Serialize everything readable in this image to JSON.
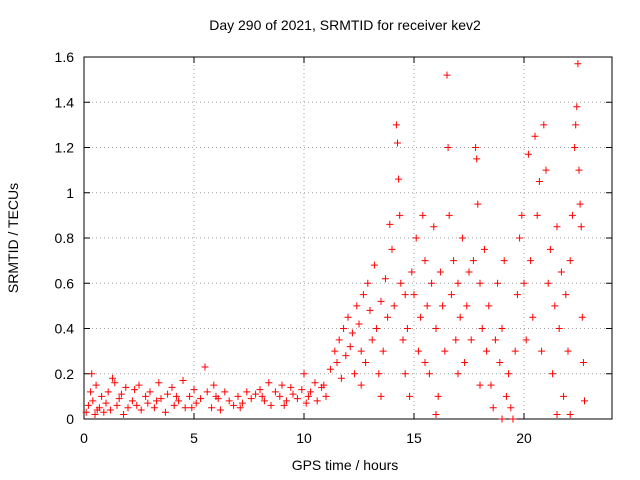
{
  "chart_data": {
    "type": "scatter",
    "title": "Day 290 of 2021, SRMTID for receiver kev2",
    "xlabel": "GPS time / hours",
    "ylabel": "SRMTID / TECUs",
    "xlim": [
      0,
      24
    ],
    "ylim": [
      0,
      1.6
    ],
    "xticks": [
      0,
      5,
      10,
      15,
      20
    ],
    "xtick_labels": [
      "0",
      "5",
      "10",
      "15",
      "20"
    ],
    "yticks": [
      0,
      0.2,
      0.4,
      0.6,
      0.8,
      1,
      1.2,
      1.4,
      1.6
    ],
    "ytick_labels": [
      "0",
      "0.2",
      "0.4",
      "0.6",
      "0.8",
      "1",
      "1.2",
      "1.4",
      "1.6"
    ],
    "grid": true,
    "marker": "+",
    "series": [
      {
        "name": "kev2",
        "color": "#ff0000",
        "points": [
          [
            0.1,
            0.03
          ],
          [
            0.2,
            0.06
          ],
          [
            0.3,
            0.12
          ],
          [
            0.35,
            0.2
          ],
          [
            0.4,
            0.08
          ],
          [
            0.5,
            0.02
          ],
          [
            0.55,
            0.15
          ],
          [
            0.7,
            0.05
          ],
          [
            0.8,
            0.1
          ],
          [
            0.9,
            0.03
          ],
          [
            1.0,
            0.07
          ],
          [
            1.1,
            0.12
          ],
          [
            1.2,
            0.04
          ],
          [
            1.3,
            0.18
          ],
          [
            1.4,
            0.16
          ],
          [
            1.5,
            0.06
          ],
          [
            1.7,
            0.11
          ],
          [
            1.8,
            0.02
          ],
          [
            1.9,
            0.14
          ],
          [
            2.0,
            0.05
          ],
          [
            2.2,
            0.08
          ],
          [
            2.3,
            0.13
          ],
          [
            2.5,
            0.15
          ],
          [
            2.6,
            0.04
          ],
          [
            2.8,
            0.1
          ],
          [
            2.9,
            0.07
          ],
          [
            3.0,
            0.12
          ],
          [
            3.2,
            0.05
          ],
          [
            3.4,
            0.16
          ],
          [
            3.5,
            0.09
          ],
          [
            3.7,
            0.03
          ],
          [
            3.8,
            0.11
          ],
          [
            4.0,
            0.14
          ],
          [
            4.1,
            0.06
          ],
          [
            4.3,
            0.08
          ],
          [
            4.5,
            0.17
          ],
          [
            4.6,
            0.05
          ],
          [
            4.8,
            0.1
          ],
          [
            5.0,
            0.13
          ],
          [
            5.1,
            0.07
          ],
          [
            5.3,
            0.09
          ],
          [
            5.5,
            0.23
          ],
          [
            5.6,
            0.12
          ],
          [
            5.8,
            0.05
          ],
          [
            5.9,
            0.15
          ],
          [
            6.0,
            0.1
          ],
          [
            6.2,
            0.04
          ],
          [
            6.4,
            0.12
          ],
          [
            6.6,
            0.08
          ],
          [
            6.8,
            0.06
          ],
          [
            7.0,
            0.1
          ],
          [
            7.2,
            0.07
          ],
          [
            7.4,
            0.12
          ],
          [
            7.6,
            0.09
          ],
          [
            7.8,
            0.11
          ],
          [
            8.0,
            0.13
          ],
          [
            8.2,
            0.08
          ],
          [
            8.4,
            0.16
          ],
          [
            8.5,
            0.06
          ],
          [
            8.7,
            0.12
          ],
          [
            8.9,
            0.1
          ],
          [
            9.0,
            0.15
          ],
          [
            9.2,
            0.08
          ],
          [
            9.4,
            0.14
          ],
          [
            9.5,
            0.11
          ],
          [
            9.7,
            0.09
          ],
          [
            9.9,
            0.13
          ],
          [
            10.0,
            0.2
          ],
          [
            10.1,
            0.07
          ],
          [
            10.3,
            0.12
          ],
          [
            10.5,
            0.16
          ],
          [
            10.6,
            0.08
          ],
          [
            10.8,
            0.14
          ],
          [
            11.0,
            0.1
          ],
          [
            11.2,
            0.22
          ],
          [
            11.4,
            0.3
          ],
          [
            11.5,
            0.25
          ],
          [
            11.6,
            0.35
          ],
          [
            11.7,
            0.18
          ],
          [
            11.8,
            0.4
          ],
          [
            11.9,
            0.28
          ],
          [
            12.0,
            0.45
          ],
          [
            12.1,
            0.32
          ],
          [
            12.2,
            0.38
          ],
          [
            12.3,
            0.2
          ],
          [
            12.4,
            0.5
          ],
          [
            12.5,
            0.42
          ],
          [
            12.6,
            0.3
          ],
          [
            12.7,
            0.55
          ],
          [
            12.8,
            0.25
          ],
          [
            12.9,
            0.6
          ],
          [
            13.0,
            0.48
          ],
          [
            13.1,
            0.35
          ],
          [
            13.2,
            0.68
          ],
          [
            13.3,
            0.4
          ],
          [
            13.4,
            0.2
          ],
          [
            13.5,
            0.52
          ],
          [
            13.6,
            0.3
          ],
          [
            13.7,
            0.62
          ],
          [
            13.8,
            0.45
          ],
          [
            13.9,
            0.86
          ],
          [
            14.0,
            0.75
          ],
          [
            14.1,
            0.5
          ],
          [
            14.2,
            1.3
          ],
          [
            14.25,
            1.22
          ],
          [
            14.3,
            1.06
          ],
          [
            14.35,
            0.9
          ],
          [
            14.4,
            0.6
          ],
          [
            14.5,
            0.35
          ],
          [
            14.6,
            0.2
          ],
          [
            14.7,
            0.4
          ],
          [
            14.8,
            0.1
          ],
          [
            14.9,
            0.65
          ],
          [
            15.0,
            0.55
          ],
          [
            15.1,
            0.8
          ],
          [
            15.2,
            0.3
          ],
          [
            15.3,
            0.45
          ],
          [
            15.4,
            0.9
          ],
          [
            15.5,
            0.7
          ],
          [
            15.6,
            0.5
          ],
          [
            15.7,
            0.2
          ],
          [
            15.8,
            0.6
          ],
          [
            15.9,
            0.85
          ],
          [
            16.0,
            0.4
          ],
          [
            16.1,
            0.1
          ],
          [
            16.2,
            0.65
          ],
          [
            16.3,
            0.5
          ],
          [
            16.4,
            0.3
          ],
          [
            16.5,
            1.52
          ],
          [
            16.55,
            1.2
          ],
          [
            16.6,
            0.9
          ],
          [
            16.7,
            0.55
          ],
          [
            16.8,
            0.7
          ],
          [
            16.9,
            0.35
          ],
          [
            17.0,
            0.6
          ],
          [
            17.1,
            0.45
          ],
          [
            17.2,
            0.8
          ],
          [
            17.3,
            0.25
          ],
          [
            17.4,
            0.5
          ],
          [
            17.5,
            0.65
          ],
          [
            17.6,
            0.35
          ],
          [
            17.7,
            0.7
          ],
          [
            17.8,
            1.2
          ],
          [
            17.85,
            1.15
          ],
          [
            17.9,
            0.95
          ],
          [
            18.0,
            0.6
          ],
          [
            18.1,
            0.4
          ],
          [
            18.2,
            0.75
          ],
          [
            18.3,
            0.3
          ],
          [
            18.4,
            0.5
          ],
          [
            18.5,
            0.15
          ],
          [
            18.6,
            0.05
          ],
          [
            18.7,
            0.35
          ],
          [
            18.8,
            0.6
          ],
          [
            18.9,
            0.25
          ],
          [
            19.0,
            0.4
          ],
          [
            19.1,
            0.7
          ],
          [
            19.2,
            0.1
          ],
          [
            19.3,
            0.2
          ],
          [
            19.4,
            0.05
          ],
          [
            19.5,
            0.0
          ],
          [
            19.6,
            0.3
          ],
          [
            19.7,
            0.55
          ],
          [
            19.8,
            0.8
          ],
          [
            19.9,
            0.9
          ],
          [
            20.0,
            0.6
          ],
          [
            20.1,
            0.35
          ],
          [
            20.2,
            1.17
          ],
          [
            20.3,
            0.7
          ],
          [
            20.4,
            0.45
          ],
          [
            20.5,
            1.25
          ],
          [
            20.6,
            0.9
          ],
          [
            20.7,
            1.05
          ],
          [
            20.8,
            0.3
          ],
          [
            20.9,
            1.3
          ],
          [
            21.0,
            1.1
          ],
          [
            21.1,
            0.6
          ],
          [
            21.2,
            0.75
          ],
          [
            21.3,
            0.2
          ],
          [
            21.4,
            0.5
          ],
          [
            21.5,
            0.85
          ],
          [
            21.6,
            0.4
          ],
          [
            21.7,
            0.65
          ],
          [
            21.8,
            0.1
          ],
          [
            21.9,
            0.55
          ],
          [
            22.0,
            0.3
          ],
          [
            22.1,
            0.7
          ],
          [
            22.2,
            0.9
          ],
          [
            22.3,
            1.2
          ],
          [
            22.35,
            1.3
          ],
          [
            22.4,
            1.38
          ],
          [
            22.45,
            1.57
          ],
          [
            22.5,
            1.1
          ],
          [
            22.55,
            0.95
          ],
          [
            22.6,
            0.85
          ],
          [
            22.65,
            0.45
          ],
          [
            22.7,
            0.25
          ],
          [
            22.75,
            0.08
          ],
          [
            22.1,
            0.02
          ],
          [
            21.5,
            0.02
          ],
          [
            0.6,
            0.04
          ],
          [
            1.6,
            0.09
          ],
          [
            2.4,
            0.06
          ],
          [
            3.3,
            0.08
          ],
          [
            4.2,
            0.1
          ],
          [
            4.9,
            0.05
          ],
          [
            6.1,
            0.09
          ],
          [
            7.1,
            0.05
          ],
          [
            8.1,
            0.1
          ],
          [
            9.1,
            0.06
          ],
          [
            10.2,
            0.1
          ],
          [
            10.9,
            0.15
          ],
          [
            12.6,
            0.15
          ],
          [
            13.5,
            0.1
          ],
          [
            14.6,
            0.55
          ],
          [
            15.5,
            0.25
          ],
          [
            16.0,
            0.02
          ],
          [
            17.0,
            0.2
          ],
          [
            18.0,
            0.15
          ],
          [
            19.0,
            0.0
          ]
        ]
      }
    ]
  }
}
